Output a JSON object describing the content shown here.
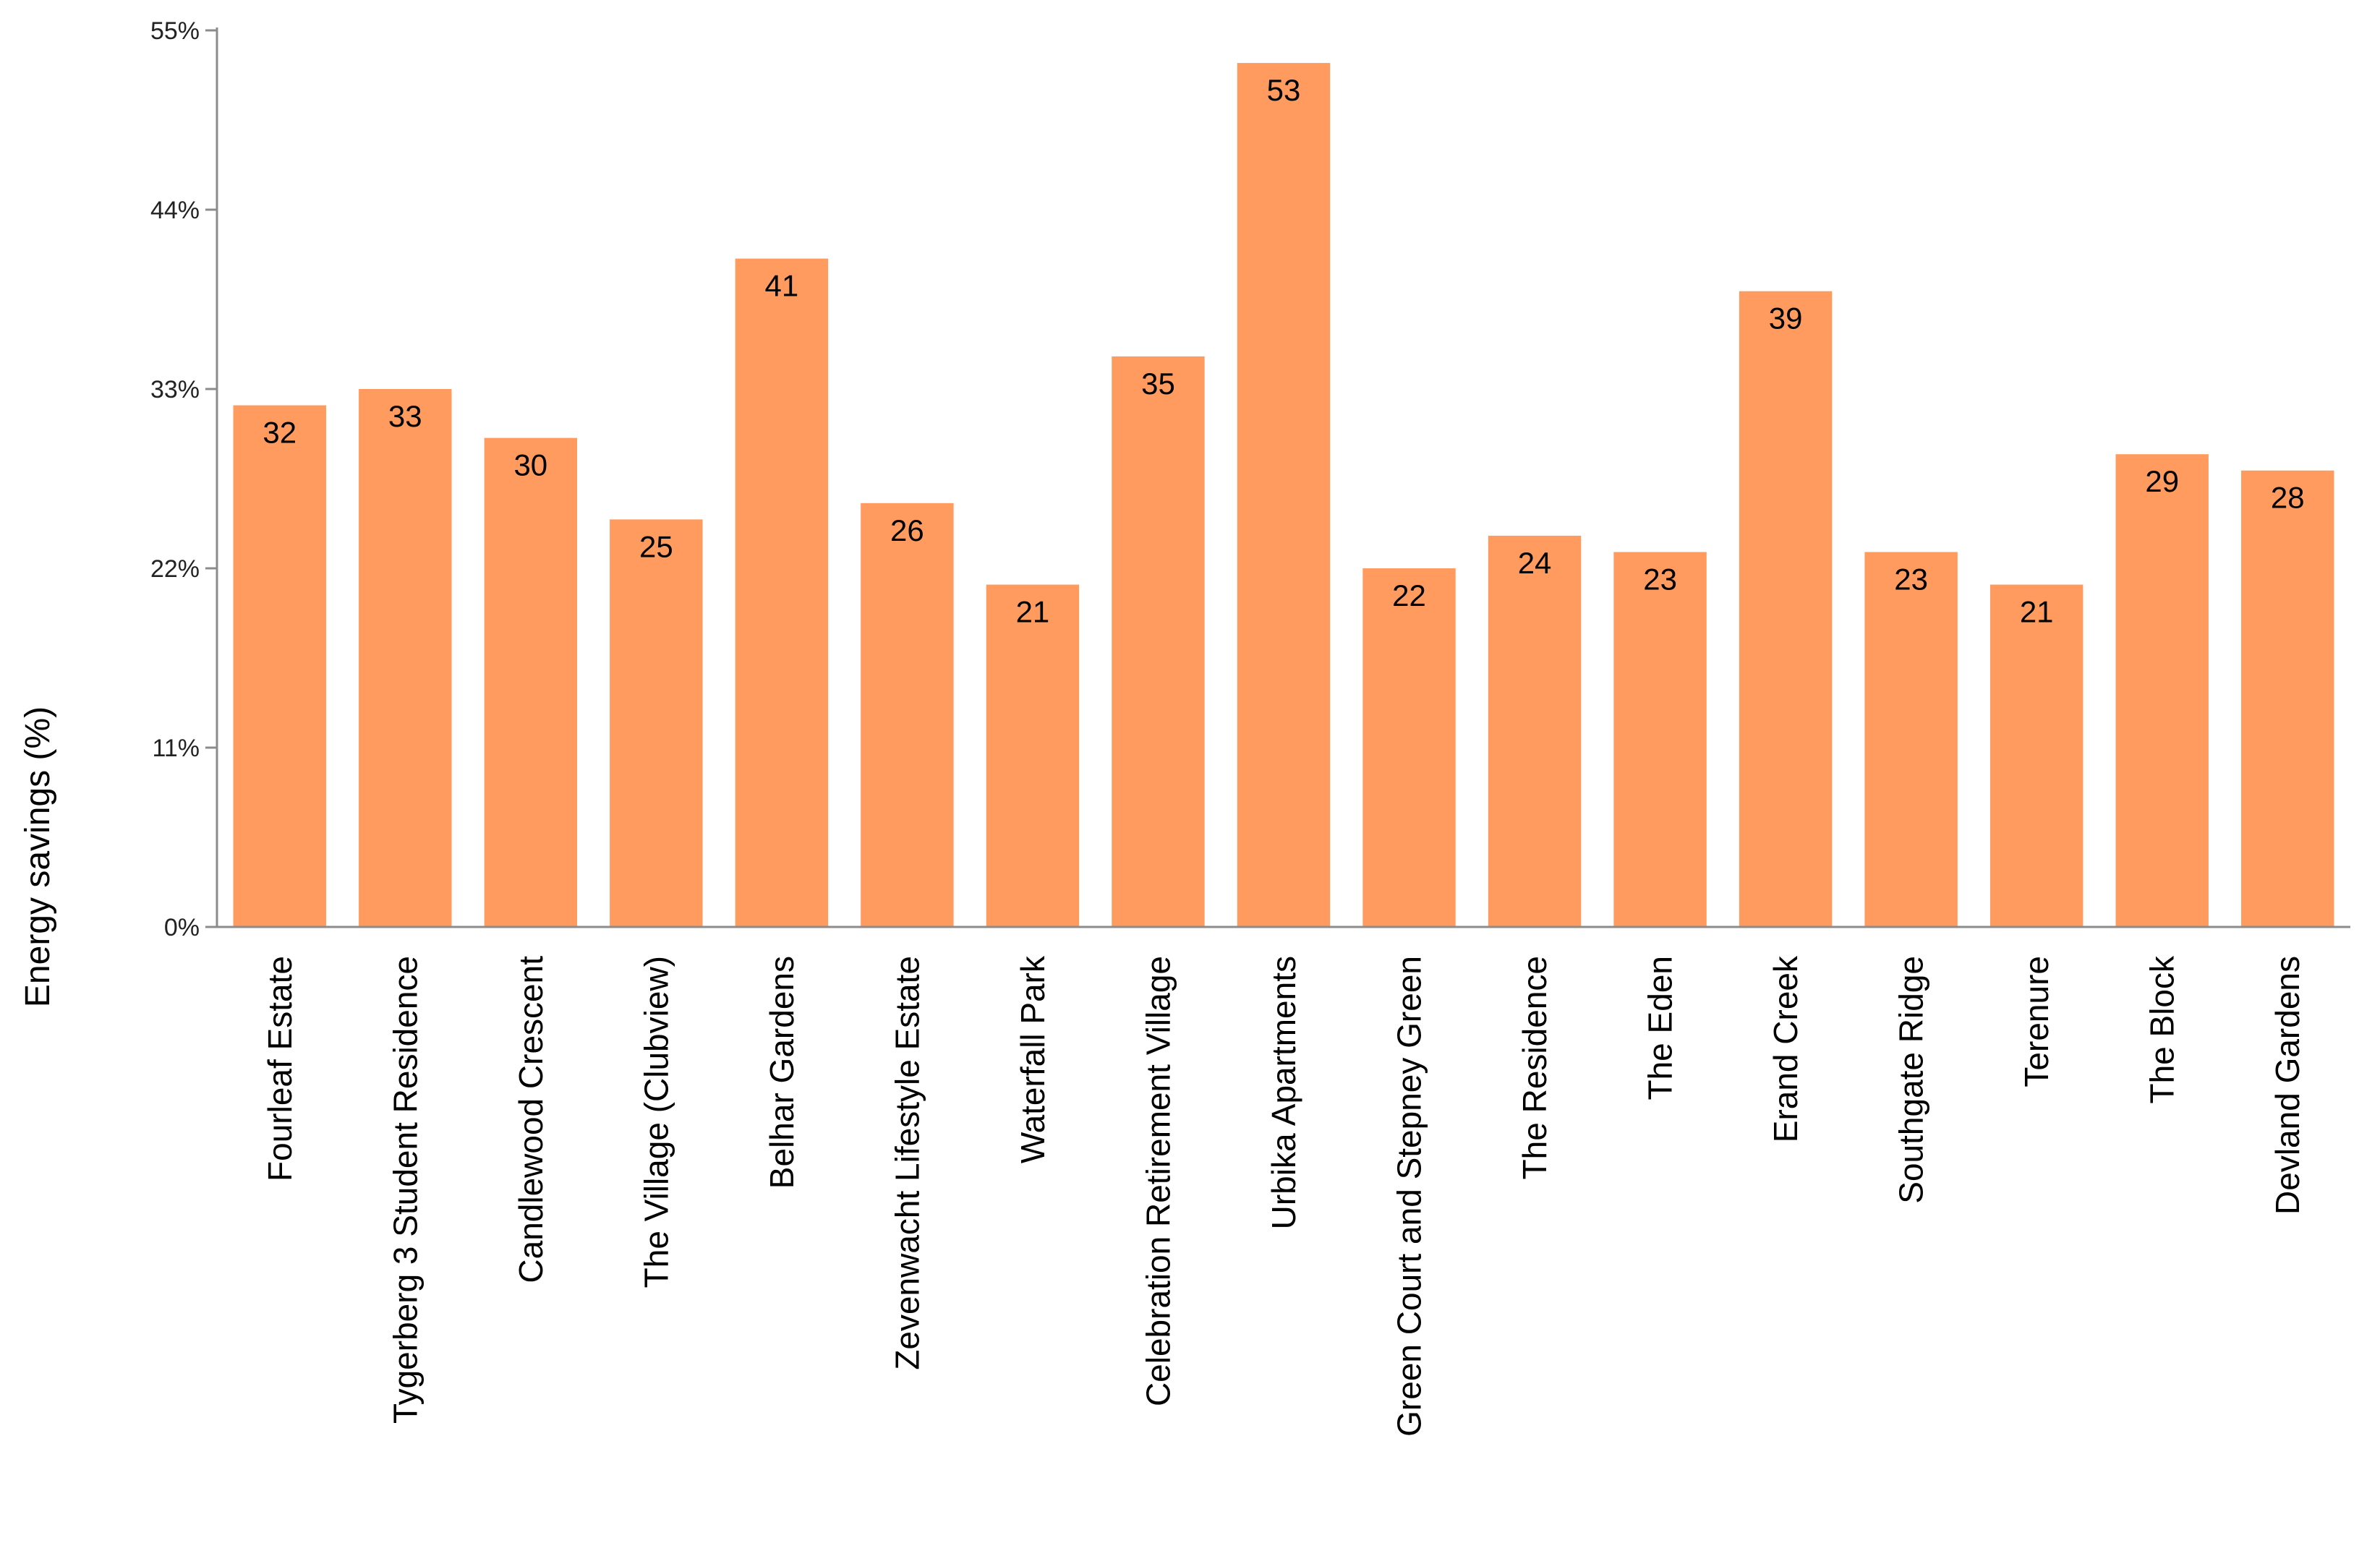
{
  "chart_data": {
    "type": "bar",
    "title": "",
    "xlabel": "",
    "ylabel": "Energy savings (%)",
    "ylim": [
      0,
      55
    ],
    "y_ticks": [
      0,
      11,
      22,
      33,
      44,
      55
    ],
    "y_tick_labels": [
      "0%",
      "11%",
      "22%",
      "33%",
      "44%",
      "55%"
    ],
    "grid": false,
    "legend": "none",
    "bar_color": "#FF9B5E",
    "categories": [
      "Fourleaf Estate",
      "Tygerberg 3 Student Residence",
      "Candlewood Crescent",
      "The Village (Clubview)",
      "Belhar Gardens",
      "Zevenwacht Lifestyle Estate",
      "Waterfall Park",
      "Celebration Retirement Village",
      "Urbika Apartments",
      "Green Court and Stepney Green",
      "The Residence",
      "The Eden",
      "Erand Creek",
      "Southgate Ridge",
      "Terenure",
      "The Block",
      "Devland Gardens"
    ],
    "values": [
      32,
      33,
      30,
      25,
      41,
      26,
      21,
      35,
      53,
      22,
      24,
      23,
      39,
      23,
      21,
      29,
      28
    ],
    "value_labels": [
      "32",
      "33",
      "30",
      "25",
      "41",
      "26",
      "21",
      "35",
      "53",
      "22",
      "24",
      "23",
      "39",
      "23",
      "21",
      "29",
      "28"
    ]
  }
}
